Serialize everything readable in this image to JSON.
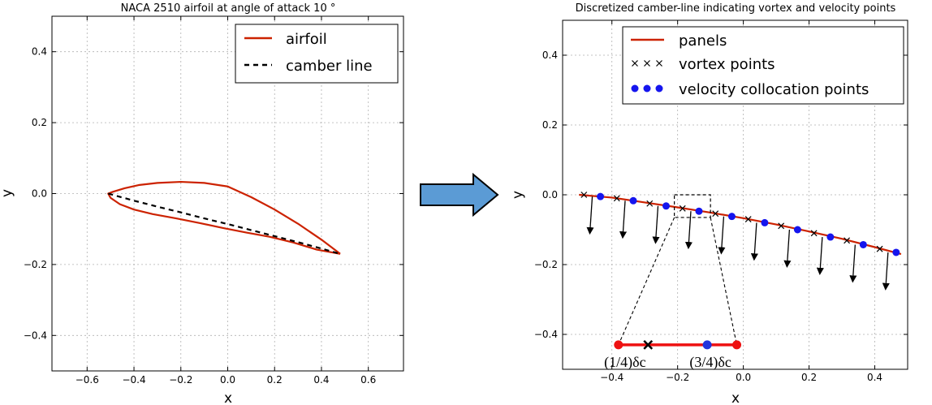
{
  "arrow": {
    "fill": "#5b9bd5",
    "stroke": "#000000"
  },
  "colors": {
    "airfoil": "#cc2200",
    "panel": "#cc2200",
    "camber": "#000000",
    "collocation": "#1515ee",
    "zoom_red": "#ee1111",
    "zoom_blue": "#2233dd"
  },
  "chart_data": [
    {
      "type": "line",
      "title": "NACA 2510 airfoil at angle of attack 10 °",
      "xlabel": "x",
      "ylabel": "y",
      "xlim": [
        -0.75,
        0.75
      ],
      "ylim": [
        -0.5,
        0.5
      ],
      "xticks": [
        "−0.6",
        "−0.4",
        "−0.2",
        "0.0",
        "0.2",
        "0.4",
        "0.6"
      ],
      "yticks": [
        "0.4",
        "0.2",
        "0.0",
        "−0.2",
        "−0.4"
      ],
      "grid": true,
      "legend_position": "top-right",
      "legend": [
        "airfoil",
        "camber line"
      ],
      "series": [
        {
          "name": "airfoil",
          "x": [
            0.48,
            0.4,
            0.3,
            0.2,
            0.1,
            0.0,
            -0.1,
            -0.2,
            -0.3,
            -0.38,
            -0.44,
            -0.49,
            -0.51,
            -0.5,
            -0.46,
            -0.4,
            -0.32,
            -0.22,
            -0.12,
            -0.02,
            0.08,
            0.18,
            0.28,
            0.38,
            0.48
          ],
          "y": [
            -0.17,
            -0.13,
            -0.085,
            -0.045,
            -0.01,
            0.02,
            0.03,
            0.033,
            0.03,
            0.024,
            0.015,
            0.005,
            0.0,
            -0.012,
            -0.03,
            -0.045,
            -0.058,
            -0.07,
            -0.083,
            -0.097,
            -0.11,
            -0.122,
            -0.138,
            -0.158,
            -0.17
          ]
        },
        {
          "name": "camber line",
          "x": [
            -0.51,
            -0.4,
            -0.3,
            -0.2,
            -0.1,
            0.0,
            0.1,
            0.2,
            0.3,
            0.4,
            0.48
          ],
          "y": [
            0.0,
            -0.02,
            -0.037,
            -0.053,
            -0.07,
            -0.086,
            -0.103,
            -0.12,
            -0.137,
            -0.155,
            -0.17
          ]
        }
      ]
    },
    {
      "type": "line",
      "title": "Discretized camber-line indicating vortex and velocity points",
      "xlabel": "x",
      "ylabel": "y",
      "xlim": [
        -0.55,
        0.5
      ],
      "ylim": [
        -0.5,
        0.5
      ],
      "xticks": [
        "−0.4",
        "−0.2",
        "0.0",
        "0.2",
        "0.4"
      ],
      "yticks": [
        "0.4",
        "0.2",
        "0.0",
        "−0.2",
        "−0.4"
      ],
      "grid": true,
      "legend_position": "top-right",
      "legend": [
        "panels",
        "vortex points",
        "velocity collocation points"
      ],
      "series": [
        {
          "name": "panels",
          "x": [
            -0.5,
            -0.4,
            -0.3,
            -0.2,
            -0.1,
            0.0,
            0.1,
            0.2,
            0.3,
            0.4,
            0.48
          ],
          "y": [
            0.0,
            -0.008,
            -0.022,
            -0.036,
            -0.051,
            -0.067,
            -0.085,
            -0.105,
            -0.126,
            -0.15,
            -0.17
          ]
        },
        {
          "name": "vortex points",
          "x": [
            -0.485,
            -0.385,
            -0.285,
            -0.185,
            -0.085,
            0.015,
            0.115,
            0.215,
            0.315,
            0.415
          ],
          "y": [
            0.0,
            -0.01,
            -0.025,
            -0.039,
            -0.054,
            -0.07,
            -0.089,
            -0.11,
            -0.131,
            -0.155
          ]
        },
        {
          "name": "velocity collocation points",
          "x": [
            -0.435,
            -0.335,
            -0.235,
            -0.135,
            -0.035,
            0.065,
            0.165,
            0.265,
            0.365,
            0.465
          ],
          "y": [
            -0.005,
            -0.017,
            -0.032,
            -0.047,
            -0.062,
            -0.08,
            -0.1,
            -0.121,
            -0.143,
            -0.165
          ]
        }
      ],
      "normals_dy": -0.105,
      "zoom_box": {
        "x": [
          -0.21,
          -0.1
        ],
        "y": [
          0.0,
          -0.065
        ]
      },
      "zoom_segment": {
        "y": -0.43,
        "x": [
          -0.38,
          -0.02
        ],
        "vortex_x": -0.29,
        "collocation_x": -0.11,
        "labels": [
          "(1/4)δc",
          "(3/4)δc"
        ],
        "label_x": [
          -0.36,
          -0.1
        ]
      }
    }
  ]
}
